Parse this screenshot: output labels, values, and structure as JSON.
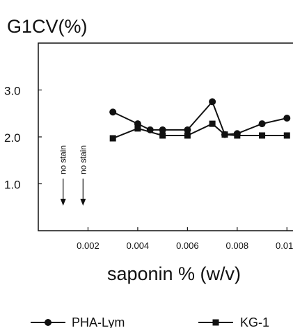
{
  "chart_data": {
    "type": "line",
    "title": "G1CV(%)",
    "xlabel": "saponin % (w/v)",
    "ylabel": "",
    "xlim": [
      0,
      0.0103
    ],
    "ylim": [
      0,
      4.0
    ],
    "x_ticks": [
      0.002,
      0.004,
      0.006,
      0.008,
      0.01
    ],
    "x_tick_labels": [
      "0.002",
      "0.004",
      "0.006",
      "0.008",
      "0.010"
    ],
    "y_ticks": [
      1.0,
      2.0,
      3.0
    ],
    "y_tick_labels": [
      "1.0",
      "2.0",
      "3.0"
    ],
    "grid": false,
    "legend_placement": "bottom",
    "annotations": [
      {
        "text": "no stain",
        "x": 0.001
      },
      {
        "text": "no stain",
        "x": 0.0018
      }
    ],
    "series": [
      {
        "name": "PHA-Lym",
        "marker": "circle",
        "color": "#111111",
        "x": [
          0.003,
          0.004,
          0.0045,
          0.005,
          0.006,
          0.007,
          0.0075,
          0.008,
          0.009,
          0.01
        ],
        "y": [
          2.53,
          2.28,
          2.15,
          2.15,
          2.15,
          2.75,
          2.05,
          2.07,
          2.28,
          2.4
        ]
      },
      {
        "name": "KG-1",
        "marker": "square",
        "color": "#111111",
        "x": [
          0.003,
          0.004,
          0.005,
          0.006,
          0.007,
          0.0075,
          0.008,
          0.009,
          0.01
        ],
        "y": [
          1.97,
          2.18,
          2.03,
          2.03,
          2.28,
          2.05,
          2.03,
          2.03,
          2.03
        ]
      }
    ]
  }
}
